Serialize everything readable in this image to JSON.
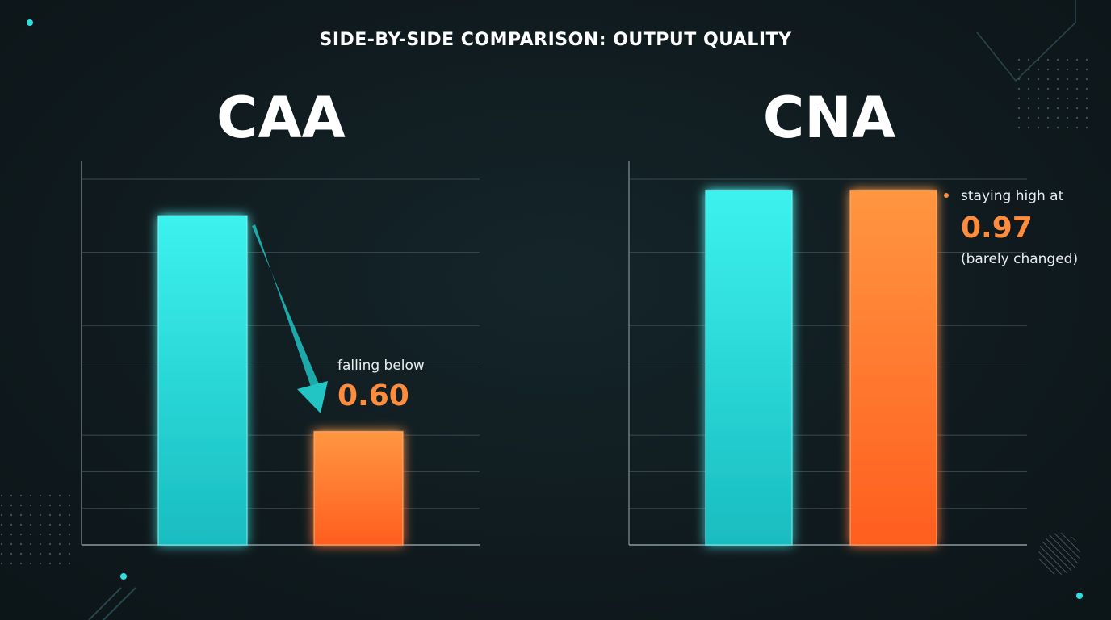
{
  "title": "SIDE-BY-SIDE COMPARISON: OUTPUT QUALITY",
  "colors": {
    "cyan": "#2fe0e0",
    "orange": "#ff7a2e",
    "background": "#0f1a1e",
    "grid": "#3a4a50"
  },
  "chart_data": [
    {
      "type": "bar",
      "title": "CAA",
      "categories": [
        "",
        ""
      ],
      "values": [
        0.9,
        0.31
      ],
      "colors": [
        "cyan",
        "orange"
      ],
      "ylim": [
        0,
        1.0
      ],
      "grid": true,
      "annotation": {
        "bar_index": 1,
        "text": "falling below",
        "value": "0.60",
        "note": "",
        "arrow": true
      }
    },
    {
      "type": "bar",
      "title": "CNA",
      "categories": [
        "",
        ""
      ],
      "values": [
        0.97,
        0.97
      ],
      "colors": [
        "cyan",
        "orange"
      ],
      "ylim": [
        0,
        1.0
      ],
      "grid": true,
      "annotation": {
        "bar_index": 1,
        "text": "staying high at",
        "value": "0.97",
        "note": "(barely changed)",
        "arrow": false
      }
    }
  ]
}
